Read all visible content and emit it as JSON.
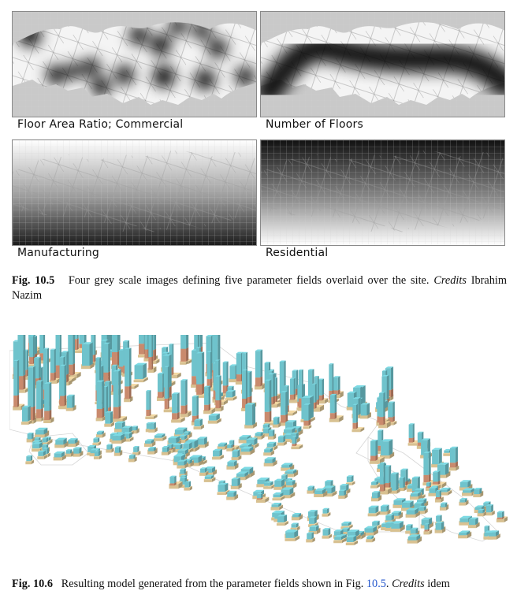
{
  "figure_10_5": {
    "panels": [
      {
        "id": "far",
        "label": "Floor Area Ratio; Commercial"
      },
      {
        "id": "floors",
        "label": "Number of Floors"
      },
      {
        "id": "manufacturing",
        "label": "Manufacturing"
      },
      {
        "id": "residential",
        "label": "Residential"
      }
    ],
    "caption_number": "Fig. 10.5",
    "caption_text": "Four grey scale images defining five parameter fields overlaid over the site.",
    "caption_credits_label": "Credits",
    "caption_credits": "Ibrahim Nazim"
  },
  "figure_10_6": {
    "caption_number": "Fig. 10.6",
    "caption_text": "Resulting model generated from the parameter fields shown in Fig.",
    "caption_ref": "10.5",
    "caption_after_ref": ".",
    "caption_credits_label": "Credits",
    "caption_credits": "idem"
  },
  "colors": {
    "tower": "#6fc3cc",
    "podium": "#d8c191",
    "terracotta": "#c98a6d",
    "link": "#2255cc"
  }
}
